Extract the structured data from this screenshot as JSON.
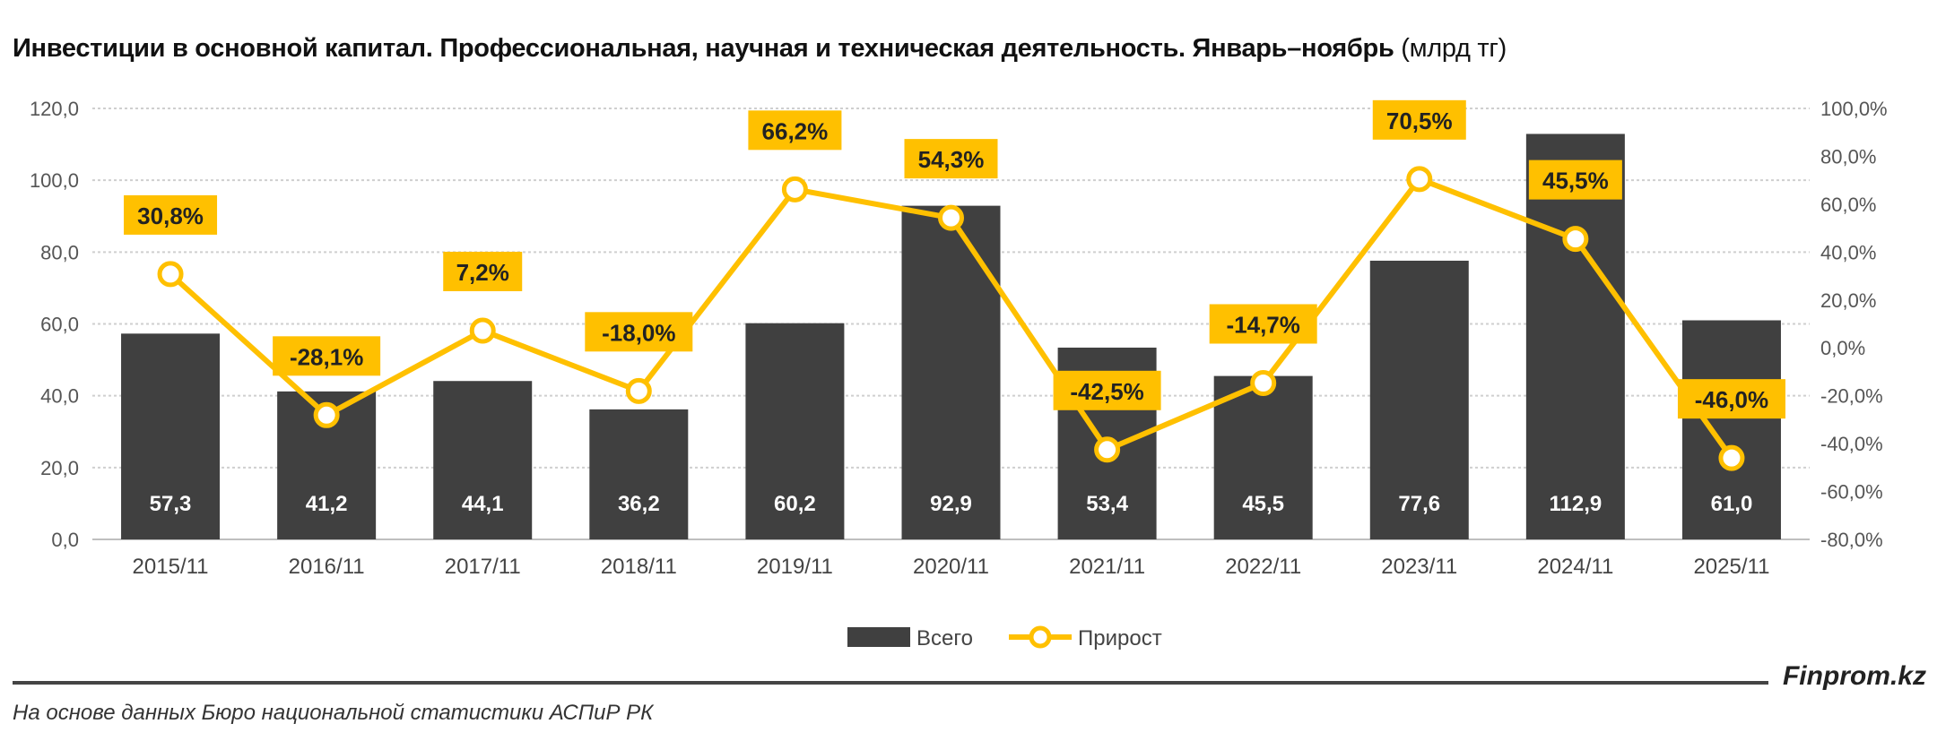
{
  "chart_data": {
    "type": "bar+line",
    "title": "Инвестиции в основной капитал. Профессиональная, научная и техническая деятельность. Январь–ноябрь",
    "title_unit": "(млрд тг)",
    "categories": [
      "2015/11",
      "2016/11",
      "2017/11",
      "2018/11",
      "2019/11",
      "2020/11",
      "2021/11",
      "2022/11",
      "2023/11",
      "2024/11",
      "2025/11"
    ],
    "series": [
      {
        "name": "Всего",
        "type": "bar",
        "axis": "left",
        "color": "#404040",
        "values": [
          57.3,
          41.2,
          44.1,
          36.2,
          60.2,
          92.9,
          53.4,
          45.5,
          77.6,
          112.9,
          61.0
        ],
        "labels": [
          "57,3",
          "41,2",
          "44,1",
          "36,2",
          "60,2",
          "92,9",
          "53,4",
          "45,5",
          "77,6",
          "112,9",
          "61,0"
        ]
      },
      {
        "name": "Прирост",
        "type": "line",
        "axis": "right",
        "color": "#FFC000",
        "values": [
          30.8,
          -28.1,
          7.2,
          -18.0,
          66.2,
          54.3,
          -42.5,
          -14.7,
          70.5,
          45.5,
          -46.0
        ],
        "labels": [
          "30,8%",
          "-28,1%",
          "7,2%",
          "-18,0%",
          "66,2%",
          "54,3%",
          "-42,5%",
          "-14,7%",
          "70,5%",
          "45,5%",
          "-46,0%"
        ]
      }
    ],
    "left_axis": {
      "min": 0,
      "max": 120,
      "ticks": [
        "0,0",
        "20,0",
        "40,0",
        "60,0",
        "80,0",
        "100,0",
        "120,0"
      ]
    },
    "right_axis": {
      "min": -80,
      "max": 100,
      "ticks": [
        "-80,0%",
        "-60,0%",
        "-40,0%",
        "-20,0%",
        "0,0%",
        "20,0%",
        "40,0%",
        "60,0%",
        "80,0%",
        "100,0%"
      ]
    },
    "grid": true,
    "legend_position": "bottom"
  },
  "footer": {
    "brand": "Finprom.kz",
    "source": "На основе данных Бюро национальной статистики АСПиР РК"
  }
}
